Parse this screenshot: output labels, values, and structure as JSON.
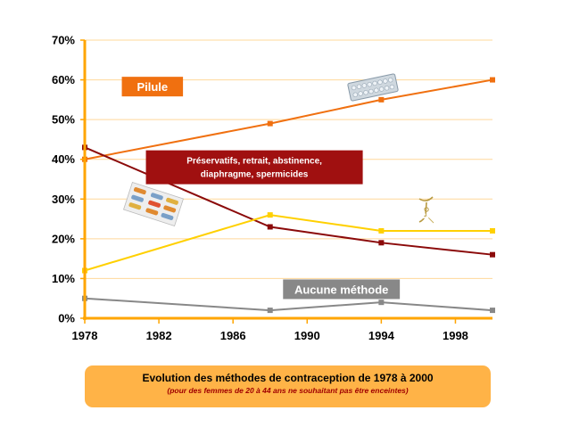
{
  "chart_data": {
    "type": "line",
    "x_ticks": [
      1978,
      1982,
      1986,
      1990,
      1994,
      1998
    ],
    "xlim": [
      1978,
      2000
    ],
    "ylim": [
      0,
      70
    ],
    "y_ticks": [
      0,
      10,
      20,
      30,
      40,
      50,
      60,
      70
    ],
    "y_tick_labels": [
      "0%",
      "10%",
      "20%",
      "30%",
      "40%",
      "50%",
      "60%",
      "70%"
    ],
    "grid": "horizontal",
    "series": [
      {
        "name": "Pilule",
        "color": "#f07010",
        "label_bg": "#f07010",
        "x": [
          1978,
          1988,
          1994,
          2000
        ],
        "y": [
          40,
          49,
          55,
          60
        ],
        "label_pos": [
          1980,
          1983.3,
          58.3
        ]
      },
      {
        "name": "Préservatifs, retrait, abstinence, diaphragme, spermicides",
        "label_lines": [
          "Préservatifs, retrait, abstinence,",
          "diaphragme, spermicides"
        ],
        "color": "#8b0a0a",
        "label_bg": "#a01010",
        "x": [
          1978,
          1988,
          1994,
          2000
        ],
        "y": [
          43,
          23,
          19,
          16
        ],
        "label_pos": [
          1981.3,
          1993,
          38
        ]
      },
      {
        "name": "Stérilet",
        "color": "#ffd000",
        "label_bg": "#ffd000",
        "x": [
          1978,
          1988,
          1994,
          2000
        ],
        "y": [
          12,
          26,
          22,
          22
        ],
        "label_pos": [
          1996.5,
          1996.5,
          26.2
        ]
      },
      {
        "name": "Aucune méthode",
        "color": "#888888",
        "label_bg": "#888888",
        "x": [
          1978,
          1988,
          1994,
          2000
        ],
        "y": [
          5,
          2,
          4,
          2
        ],
        "label_pos": [
          1988.7,
          1995,
          7.3
        ]
      }
    ],
    "title": "Evolution des méthodes de contraception de 1978 à 2000",
    "subtitle": "(pour des femmes de 20 à 44 ans ne souhaitant pas être enceintes)"
  },
  "colors": {
    "axis": "#ffa500",
    "grid": "#ffd89a",
    "caption_bg": "#ffb347"
  }
}
